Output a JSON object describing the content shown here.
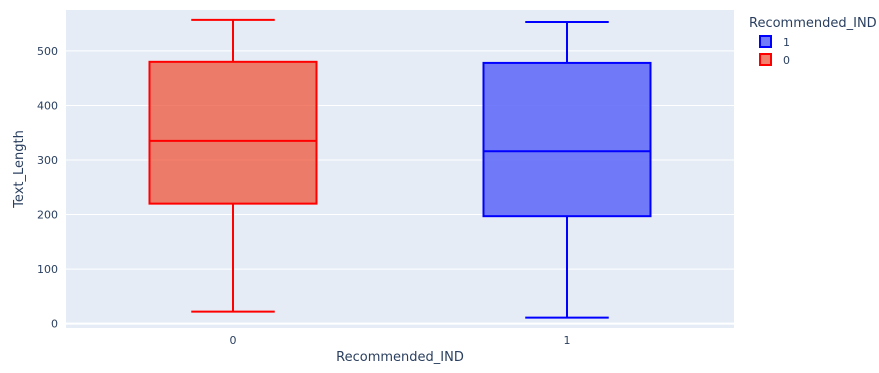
{
  "chart_data": {
    "type": "box",
    "xlabel": "Recommended_IND",
    "ylabel": "Text_Length",
    "categories": [
      "0",
      "1"
    ],
    "ylim": [
      -8,
      575
    ],
    "yticks": [
      0,
      100,
      200,
      300,
      400,
      500
    ],
    "grid": true,
    "legend": {
      "title": "Recommended_IND",
      "placement": "top-right",
      "entries": [
        "1",
        "0"
      ]
    },
    "series": [
      {
        "name": "0",
        "category": "0",
        "color": "#ff0000",
        "fill": "rgba(239,85,59,0.75)",
        "min": 22,
        "q1": 220,
        "median": 335,
        "q3": 480,
        "max": 557
      },
      {
        "name": "1",
        "category": "1",
        "color": "#0000ff",
        "fill": "rgba(99,110,250,0.9)",
        "min": 11,
        "q1": 197,
        "median": 316,
        "q3": 478,
        "max": 553
      }
    ],
    "colors": {
      "plot_bg": "#e5ecf6",
      "grid": "#ffffff",
      "tick_text": "#2a3f5f"
    }
  }
}
